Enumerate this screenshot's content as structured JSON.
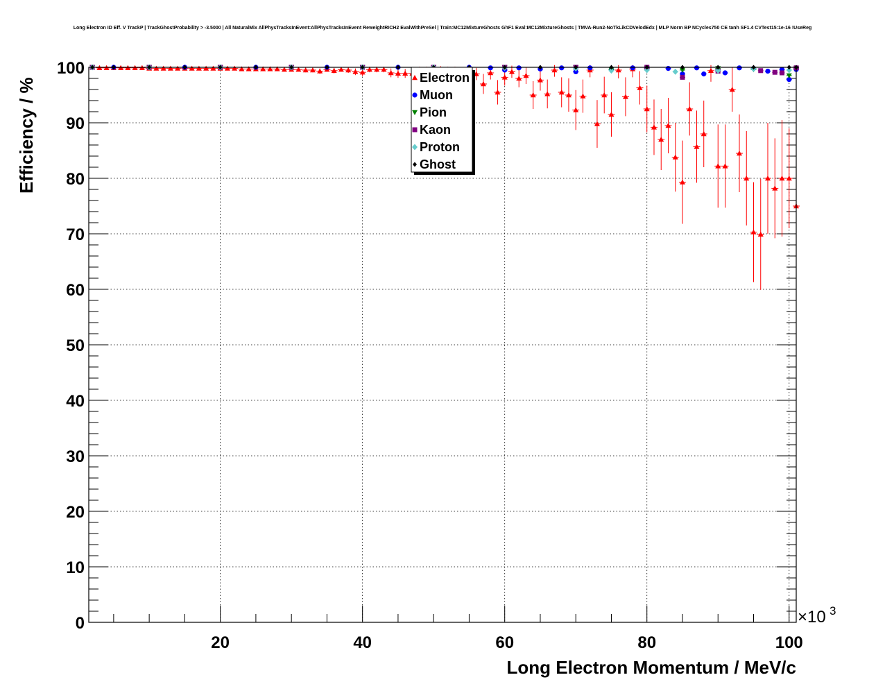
{
  "chart_data": {
    "type": "scatter",
    "title": "Long Electron ID Eff. V TrackP | TrackGhostProbability > -3.5000 | All NaturalMix AllPhysTracksInEvent:AllPhysTracksInEvent ReweightRICH2 EvalWithPreSel | Train:MC12MixtureGhosts GhF1 Eval:MC12MixtureGhosts | TMVA-Run2-NoTkLikCDVelodEdx | MLP Norm BP NCycles750 CE tanh SF1.4 CVTest15:1e-16 !UseReg",
    "xlabel": "Long Electron Momentum / MeV/c",
    "ylabel": "Efficiency / %",
    "x_exponent": "×10",
    "x_exponent_power": "3",
    "xlim": [
      1.5,
      101
    ],
    "ylim": [
      0,
      100
    ],
    "x_ticks": [
      {
        "value": 20,
        "label": "20"
      },
      {
        "value": 40,
        "label": "40"
      },
      {
        "value": 60,
        "label": "60"
      },
      {
        "value": 80,
        "label": "80"
      },
      {
        "value": 100,
        "label": "100"
      }
    ],
    "y_ticks": [
      {
        "value": 0,
        "label": "0"
      },
      {
        "value": 10,
        "label": "10"
      },
      {
        "value": 20,
        "label": "20"
      },
      {
        "value": 30,
        "label": "30"
      },
      {
        "value": 40,
        "label": "40"
      },
      {
        "value": 50,
        "label": "50"
      },
      {
        "value": 60,
        "label": "60"
      },
      {
        "value": 70,
        "label": "70"
      },
      {
        "value": 80,
        "label": "80"
      },
      {
        "value": 90,
        "label": "90"
      },
      {
        "value": 100,
        "label": "100"
      }
    ],
    "grid": true,
    "legend_position": "top-center",
    "legend": [
      {
        "name": "Electron",
        "color": "#ff0000",
        "marker": "triangle-up"
      },
      {
        "name": "Muon",
        "color": "#0000ff",
        "marker": "circle"
      },
      {
        "name": "Pion",
        "color": "#008000",
        "marker": "triangle-down"
      },
      {
        "name": "Kaon",
        "color": "#800080",
        "marker": "square"
      },
      {
        "name": "Proton",
        "color": "#66cccc",
        "marker": "diamond"
      },
      {
        "name": "Ghost",
        "color": "#000000",
        "marker": "diamond-small"
      }
    ],
    "series": [
      {
        "name": "Electron",
        "color": "#ff0000",
        "points": [
          [
            2,
            100,
            0
          ],
          [
            3,
            99.9,
            0.1
          ],
          [
            4,
            99.9,
            0.1
          ],
          [
            5,
            99.9,
            0.1
          ],
          [
            6,
            99.9,
            0.1
          ],
          [
            7,
            99.9,
            0.1
          ],
          [
            8,
            99.9,
            0.1
          ],
          [
            9,
            99.9,
            0.1
          ],
          [
            10,
            99.8,
            0.2
          ],
          [
            11,
            99.8,
            0.2
          ],
          [
            12,
            99.8,
            0.2
          ],
          [
            13,
            99.8,
            0.2
          ],
          [
            14,
            99.8,
            0.2
          ],
          [
            15,
            99.8,
            0.2
          ],
          [
            16,
            99.8,
            0.2
          ],
          [
            17,
            99.8,
            0.2
          ],
          [
            18,
            99.8,
            0.2
          ],
          [
            19,
            99.8,
            0.2
          ],
          [
            20,
            99.8,
            0.2
          ],
          [
            21,
            99.8,
            0.2
          ],
          [
            22,
            99.8,
            0.2
          ],
          [
            23,
            99.7,
            0.2
          ],
          [
            24,
            99.7,
            0.2
          ],
          [
            25,
            99.7,
            0.2
          ],
          [
            26,
            99.7,
            0.3
          ],
          [
            27,
            99.7,
            0.3
          ],
          [
            28,
            99.7,
            0.3
          ],
          [
            29,
            99.6,
            0.3
          ],
          [
            30,
            99.6,
            0.3
          ],
          [
            31,
            99.6,
            0.3
          ],
          [
            32,
            99.5,
            0.4
          ],
          [
            33,
            99.5,
            0.4
          ],
          [
            34,
            99.3,
            0.5
          ],
          [
            35,
            99.6,
            0.4
          ],
          [
            36,
            99.4,
            0.5
          ],
          [
            37,
            99.6,
            0.4
          ],
          [
            38,
            99.5,
            0.5
          ],
          [
            39,
            99.2,
            0.6
          ],
          [
            40,
            99.1,
            0.7
          ],
          [
            41,
            99.6,
            0.5
          ],
          [
            42,
            99.6,
            0.5
          ],
          [
            43,
            99.6,
            0.5
          ],
          [
            44,
            99.0,
            0.8
          ],
          [
            45,
            98.9,
            0.8
          ],
          [
            46,
            98.9,
            0.8
          ],
          [
            47,
            98.9,
            0.9
          ],
          [
            48,
            99.4,
            0.7
          ],
          [
            49,
            99.4,
            0.7
          ],
          [
            50,
            99.2,
            0.8
          ],
          [
            51,
            99.5,
            0.7
          ],
          [
            52,
            99.4,
            0.7
          ],
          [
            53,
            99.3,
            0.8
          ],
          [
            54,
            99.0,
            1.0
          ],
          [
            55,
            98.5,
            1.2
          ],
          [
            56,
            98.8,
            1.1
          ],
          [
            57,
            97.0,
            1.8
          ],
          [
            58,
            99.0,
            1.2
          ],
          [
            59,
            95.5,
            2.2
          ],
          [
            60,
            98.2,
            1.5
          ],
          [
            61,
            99.2,
            1.1
          ],
          [
            62,
            98.0,
            1.6
          ],
          [
            63,
            98.5,
            1.5
          ],
          [
            64,
            95.0,
            2.5
          ],
          [
            65,
            97.7,
            1.9
          ],
          [
            66,
            95.2,
            2.6
          ],
          [
            67,
            99.5,
            1.2
          ],
          [
            68,
            95.5,
            2.7
          ],
          [
            69,
            95.0,
            3.0
          ],
          [
            70,
            92.3,
            3.6
          ],
          [
            71,
            94.8,
            3.0
          ],
          [
            72,
            99.5,
            1.3
          ],
          [
            73,
            89.8,
            4.3
          ],
          [
            74,
            95.0,
            3.3
          ],
          [
            75,
            91.5,
            4.0
          ],
          [
            76,
            99.5,
            1.5
          ],
          [
            77,
            94.7,
            3.5
          ],
          [
            78,
            99.7,
            1.5
          ],
          [
            79,
            96.3,
            3.0
          ],
          [
            80,
            92.5,
            4.2
          ],
          [
            81,
            89.2,
            5.0
          ],
          [
            82,
            87.0,
            5.5
          ],
          [
            83,
            89.5,
            5.0
          ],
          [
            84,
            83.8,
            6.2
          ],
          [
            85,
            79.3,
            7.5
          ],
          [
            86,
            92.5,
            4.8
          ],
          [
            87,
            85.7,
            6.5
          ],
          [
            88,
            88.0,
            6.0
          ],
          [
            89,
            99.4,
            2.0
          ],
          [
            90,
            82.2,
            7.5
          ],
          [
            91,
            82.2,
            7.5
          ],
          [
            92,
            96.0,
            4.0
          ],
          [
            93,
            84.5,
            7.0
          ],
          [
            94,
            80.0,
            8.5
          ],
          [
            95,
            70.3,
            9.0
          ],
          [
            96,
            69.9,
            10.0
          ],
          [
            97,
            80.0,
            10.0
          ],
          [
            98,
            78.2,
            9.0
          ],
          [
            99,
            80.0,
            10.5
          ],
          [
            100,
            80.0,
            9.0
          ],
          [
            101,
            75.0,
            11.0
          ]
        ]
      },
      {
        "name": "Muon",
        "color": "#0000ff",
        "points": [
          [
            2,
            100
          ],
          [
            5,
            100
          ],
          [
            10,
            100
          ],
          [
            15,
            100
          ],
          [
            20,
            100
          ],
          [
            25,
            100
          ],
          [
            30,
            100
          ],
          [
            35,
            100
          ],
          [
            40,
            100
          ],
          [
            45,
            100
          ],
          [
            50,
            100
          ],
          [
            55,
            100
          ],
          [
            58,
            99.9
          ],
          [
            60,
            99.5
          ],
          [
            62,
            99.9
          ],
          [
            65,
            99.7
          ],
          [
            68,
            99.9
          ],
          [
            70,
            99.2
          ],
          [
            72,
            99.9
          ],
          [
            75,
            99.6
          ],
          [
            78,
            99.9
          ],
          [
            80,
            99.9
          ],
          [
            83,
            99.8
          ],
          [
            85,
            98.8
          ],
          [
            87,
            99.9
          ],
          [
            88,
            98.8
          ],
          [
            90,
            99.5
          ],
          [
            91,
            99.0
          ],
          [
            93,
            99.9
          ],
          [
            95,
            99.8
          ],
          [
            97,
            99.3
          ],
          [
            99,
            99.6
          ],
          [
            100,
            97.8
          ],
          [
            101,
            99.6
          ]
        ]
      },
      {
        "name": "Pion",
        "color": "#008000",
        "points": [
          [
            2,
            100
          ],
          [
            10,
            100
          ],
          [
            20,
            100
          ],
          [
            30,
            100
          ],
          [
            40,
            100
          ],
          [
            50,
            100
          ],
          [
            60,
            100
          ],
          [
            70,
            100
          ],
          [
            75,
            99.6
          ],
          [
            80,
            99.8
          ],
          [
            85,
            99.5
          ],
          [
            90,
            99.8
          ],
          [
            95,
            99.6
          ],
          [
            100,
            98.5
          ],
          [
            101,
            99.8
          ]
        ]
      },
      {
        "name": "Kaon",
        "color": "#800080",
        "points": [
          [
            2,
            100
          ],
          [
            10,
            100
          ],
          [
            20,
            100
          ],
          [
            30,
            100
          ],
          [
            40,
            100
          ],
          [
            50,
            100
          ],
          [
            60,
            100
          ],
          [
            70,
            100
          ],
          [
            80,
            100
          ],
          [
            85,
            98.2
          ],
          [
            90,
            99.3
          ],
          [
            96,
            99.4
          ],
          [
            98,
            99.1
          ],
          [
            99,
            99.0
          ],
          [
            101,
            99.9
          ]
        ]
      },
      {
        "name": "Proton",
        "color": "#66cccc",
        "points": [
          [
            2,
            100
          ],
          [
            10,
            100
          ],
          [
            20,
            100
          ],
          [
            30,
            100
          ],
          [
            40,
            100
          ],
          [
            50,
            100
          ],
          [
            60,
            99.9
          ],
          [
            70,
            99.8
          ],
          [
            75,
            99.4
          ],
          [
            80,
            99.5
          ],
          [
            84,
            99.2
          ],
          [
            90,
            99.4
          ],
          [
            95,
            99.7
          ],
          [
            100,
            99.5
          ]
        ]
      },
      {
        "name": "Ghost",
        "color": "#000000",
        "points": [
          [
            2,
            100
          ],
          [
            5,
            100
          ],
          [
            10,
            100
          ],
          [
            15,
            100
          ],
          [
            20,
            100
          ],
          [
            25,
            100
          ],
          [
            30,
            100
          ],
          [
            35,
            100
          ],
          [
            40,
            100
          ],
          [
            45,
            100
          ],
          [
            50,
            100
          ],
          [
            55,
            100
          ],
          [
            60,
            100
          ],
          [
            65,
            100
          ],
          [
            70,
            100
          ],
          [
            75,
            100
          ],
          [
            80,
            100
          ],
          [
            85,
            100
          ],
          [
            90,
            100
          ],
          [
            95,
            100
          ],
          [
            100,
            100
          ],
          [
            101,
            100
          ]
        ]
      }
    ]
  }
}
